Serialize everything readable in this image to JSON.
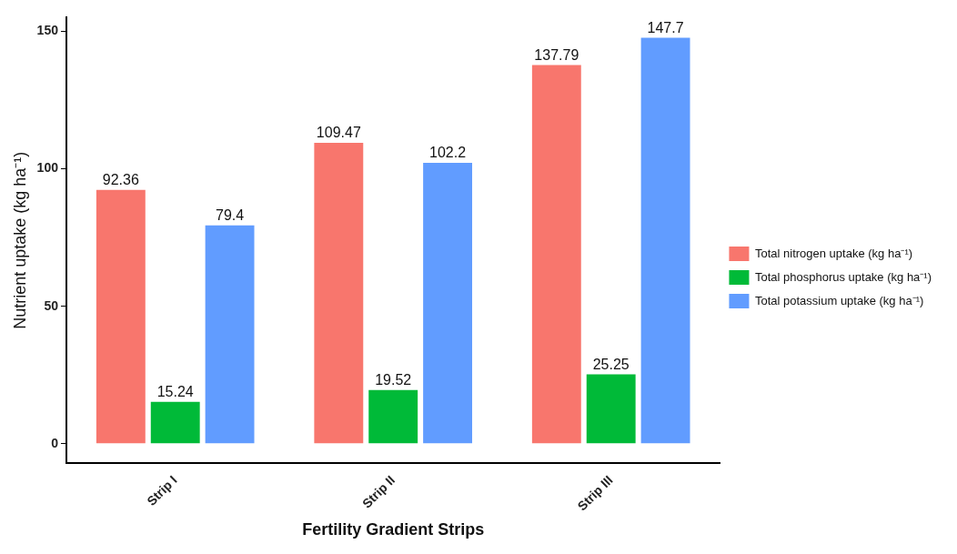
{
  "chart_data": {
    "type": "bar",
    "xlabel": "Fertility Gradient Strips",
    "ylabel": "Nutrient uptake (kg ha⁻¹)",
    "categories": [
      "Strip I",
      "Strip II",
      "Strip III"
    ],
    "series": [
      {
        "name": "Total nitrogen uptake (kg ha⁻¹)",
        "color": "#f8766d",
        "values": [
          92.36,
          109.47,
          137.79
        ]
      },
      {
        "name": "Total phosphorus uptake (kg ha⁻¹)",
        "color": "#00ba38",
        "values": [
          15.24,
          19.52,
          25.25
        ]
      },
      {
        "name": "Total potassium uptake (kg ha⁻¹)",
        "color": "#619cff",
        "values": [
          79.4,
          102.2,
          147.7
        ]
      }
    ],
    "ylim": [
      -7,
      155
    ],
    "yticks": [
      0,
      50,
      100,
      150
    ],
    "grid": false,
    "legend": "right",
    "data_labels": true
  }
}
